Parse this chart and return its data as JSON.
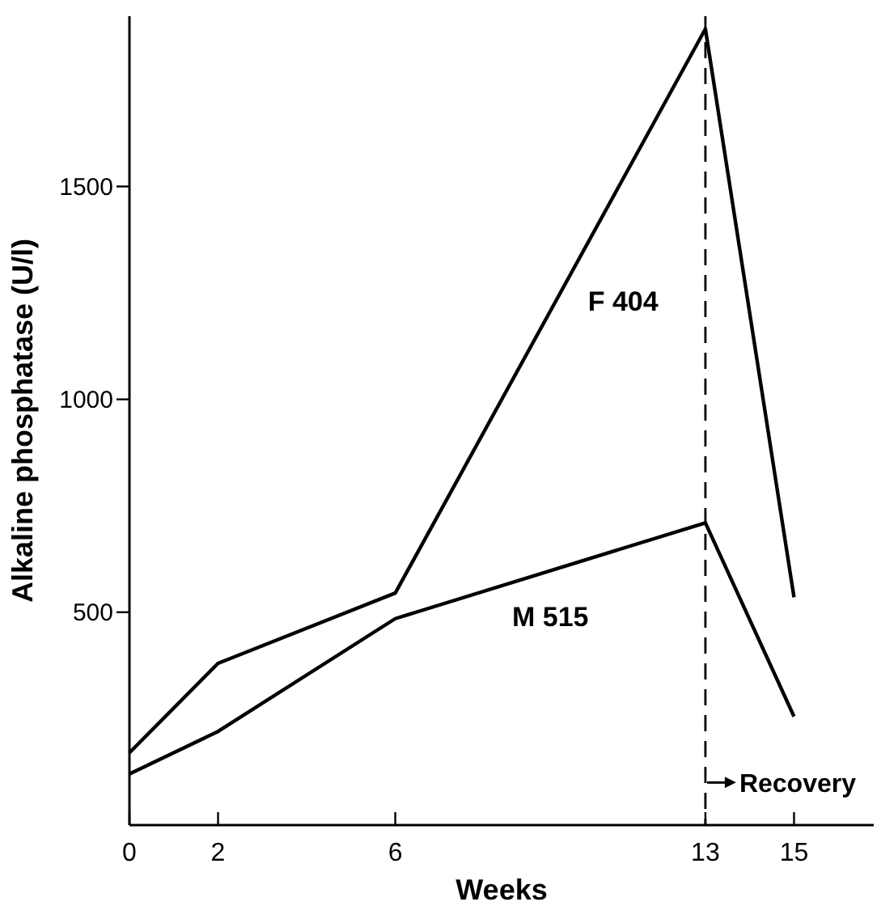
{
  "chart_data": {
    "type": "line",
    "xlabel": "Weeks",
    "ylabel": "Alkaline phosphatase (U/l)",
    "xlim": [
      0,
      16.8
    ],
    "xticks": [
      0,
      2,
      6,
      13,
      15
    ],
    "ylim": [
      0,
      1900
    ],
    "yticks": [
      500,
      1000,
      1500
    ],
    "grid": false,
    "marker": "none",
    "line_style": "solid",
    "series": [
      {
        "name": "F 404",
        "color": "#000000",
        "x": [
          0,
          2,
          6,
          13,
          15
        ],
        "values": [
          170,
          380,
          545,
          1870,
          535
        ]
      },
      {
        "name": "M 515",
        "color": "#000000",
        "x": [
          0,
          2,
          6,
          13,
          15
        ],
        "values": [
          120,
          220,
          485,
          710,
          255
        ]
      }
    ],
    "ref_lines": [
      {
        "axis": "x",
        "value": 13,
        "line_style": "dashed",
        "color": "#000000"
      }
    ],
    "annotations": [
      {
        "text": "Recovery",
        "x": 13,
        "y": 100
      }
    ]
  }
}
